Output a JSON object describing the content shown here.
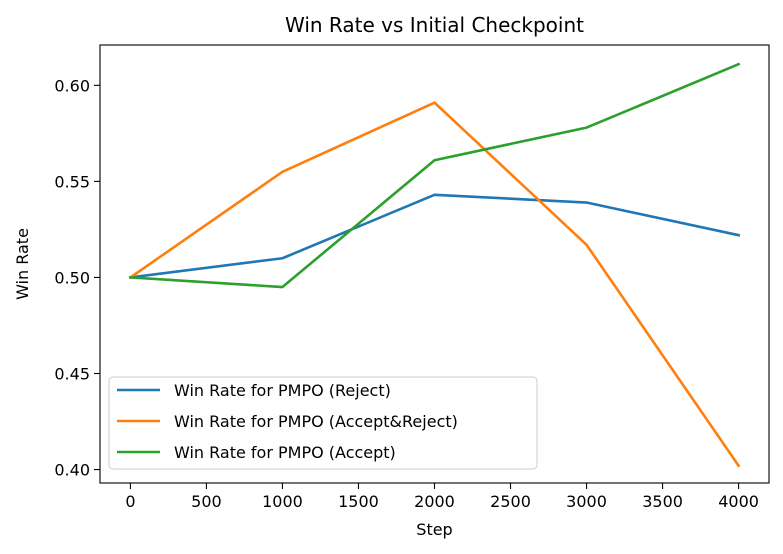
{
  "chart_data": {
    "type": "line",
    "title": "Win Rate vs Initial Checkpoint",
    "xlabel": "Step",
    "ylabel": "Win Rate",
    "x": [
      0,
      1000,
      2000,
      3000,
      4000
    ],
    "xlim": [
      -200,
      4200
    ],
    "ylim": [
      0.393,
      0.621
    ],
    "xticks": [
      "0",
      "500",
      "1000",
      "1500",
      "2000",
      "2500",
      "3000",
      "3500",
      "4000"
    ],
    "yticks": [
      "0.40",
      "0.45",
      "0.50",
      "0.55",
      "0.60"
    ],
    "grid": false,
    "legend_position": "lower-left",
    "series": [
      {
        "name": "Win Rate for PMPO (Reject)",
        "color": "#1f77b4",
        "values": [
          0.5,
          0.51,
          0.543,
          0.539,
          0.522
        ]
      },
      {
        "name": "Win Rate for PMPO (Accept&Reject)",
        "color": "#ff7f0e",
        "values": [
          0.5,
          0.555,
          0.591,
          0.517,
          0.402
        ]
      },
      {
        "name": "Win Rate for PMPO (Accept)",
        "color": "#2ca02c",
        "values": [
          0.5,
          0.495,
          0.561,
          0.578,
          0.611
        ]
      }
    ]
  }
}
